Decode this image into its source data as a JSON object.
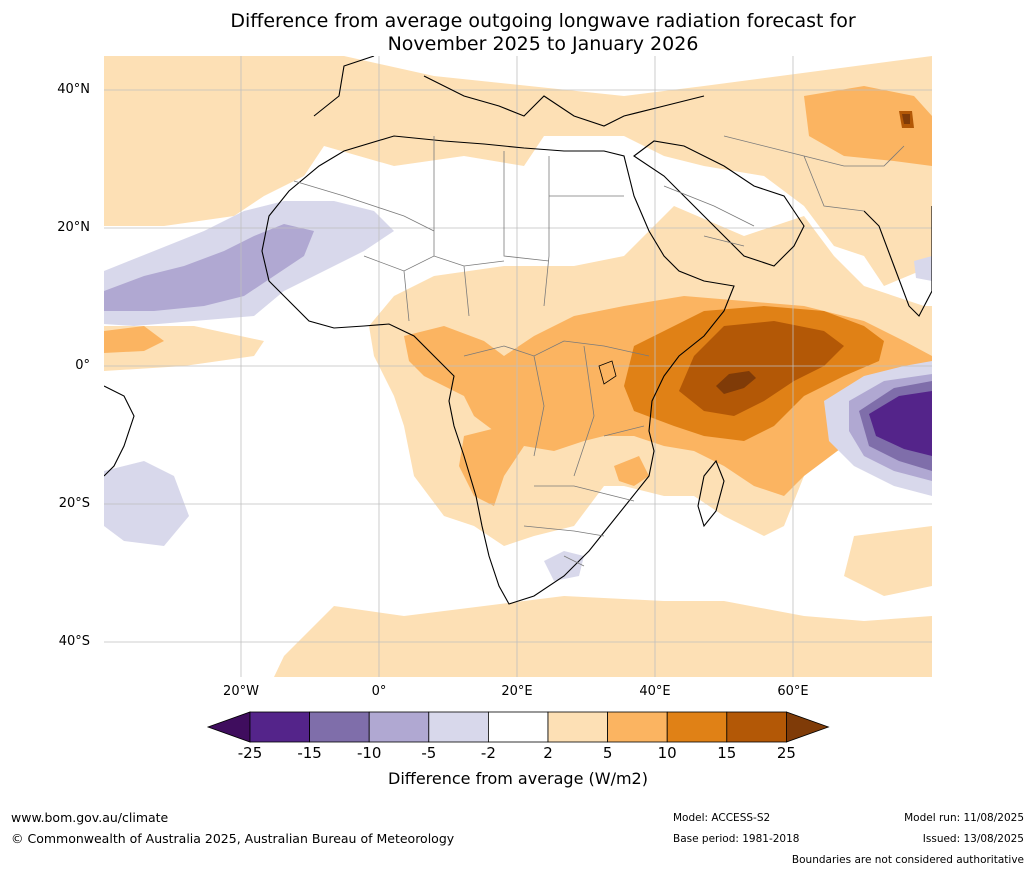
{
  "title_line1": "Difference from average outgoing longwave radiation forecast for",
  "title_line2": "November 2025 to January 2026",
  "lat_labels": [
    "40°N",
    "20°N",
    "0°",
    "20°S",
    "40°S"
  ],
  "lon_labels": [
    "20°W",
    "0°",
    "20°E",
    "40°E",
    "60°E"
  ],
  "legend": {
    "ticks": [
      "-25",
      "-15",
      "-10",
      "-5",
      "-2",
      "2",
      "5",
      "10",
      "15",
      "25"
    ],
    "colors": [
      "#3f0d5e",
      "#54248a",
      "#7f6eaa",
      "#b0a8d2",
      "#d8d8eb",
      "#ffffff",
      "#fde0b5",
      "#fbb461",
      "#e08116",
      "#b35806",
      "#7f3b08"
    ],
    "label": "Difference from average (W/m2)"
  },
  "footer": {
    "url": "www.bom.gov.au/climate",
    "copyright": "© Commonwealth of Australia 2025, Australian Bureau of Meteorology",
    "model": "Model: ACCESS-S2",
    "base_period": "Base period: 1981-2018",
    "model_run": "Model run: 11/08/2025",
    "issued": "Issued: 13/08/2025",
    "disclaimer": "Boundaries are not considered authoritative"
  }
}
